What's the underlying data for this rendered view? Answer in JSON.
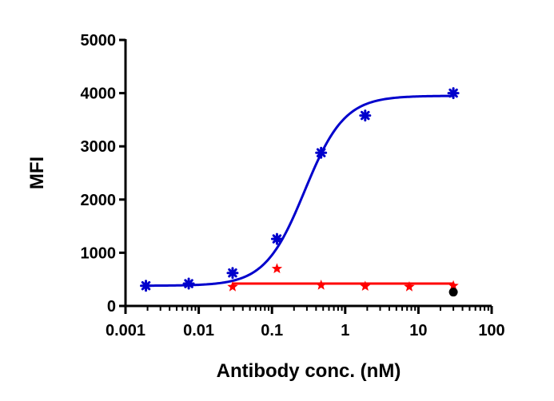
{
  "chart_data": {
    "type": "scatter",
    "title": "",
    "xlabel": "Antibody conc. (nM)",
    "ylabel": "MFI",
    "xscale": "log",
    "xlim": [
      0.001,
      100
    ],
    "ylim": [
      0,
      5000
    ],
    "grid": false,
    "legend": "none",
    "x_ticks": [
      {
        "value": 0.001,
        "label": "0.001"
      },
      {
        "value": 0.01,
        "label": "0.01"
      },
      {
        "value": 0.1,
        "label": "0.1"
      },
      {
        "value": 1,
        "label": "1"
      },
      {
        "value": 10,
        "label": "10"
      },
      {
        "value": 100,
        "label": "100"
      }
    ],
    "y_ticks": [
      {
        "value": 0,
        "label": "0"
      },
      {
        "value": 1000,
        "label": "1000"
      },
      {
        "value": 2000,
        "label": "2000"
      },
      {
        "value": 3000,
        "label": "3000"
      },
      {
        "value": 4000,
        "label": "4000"
      },
      {
        "value": 5000,
        "label": "5000"
      }
    ],
    "series": [
      {
        "color": "#0000cc",
        "marker": "asterisk",
        "fit": "sigmoidal",
        "fit_params": {
          "bottom": 380,
          "top": 3950,
          "ec50": 0.28,
          "hill": 1.6
        },
        "x": [
          0.0019,
          0.0073,
          0.029,
          0.117,
          0.469,
          1.875,
          30
        ],
        "y": [
          380,
          420,
          620,
          1260,
          2880,
          3580,
          4000
        ]
      },
      {
        "color": "#ff0000",
        "marker": "star",
        "fit": "constant",
        "fit_value": 420,
        "x": [
          0.029,
          0.117,
          0.469,
          1.875,
          7.5,
          30
        ],
        "y": [
          360,
          700,
          390,
          370,
          360,
          380
        ]
      },
      {
        "color": "#000000",
        "marker": "circle",
        "x": [
          30
        ],
        "y": [
          260
        ]
      }
    ]
  }
}
